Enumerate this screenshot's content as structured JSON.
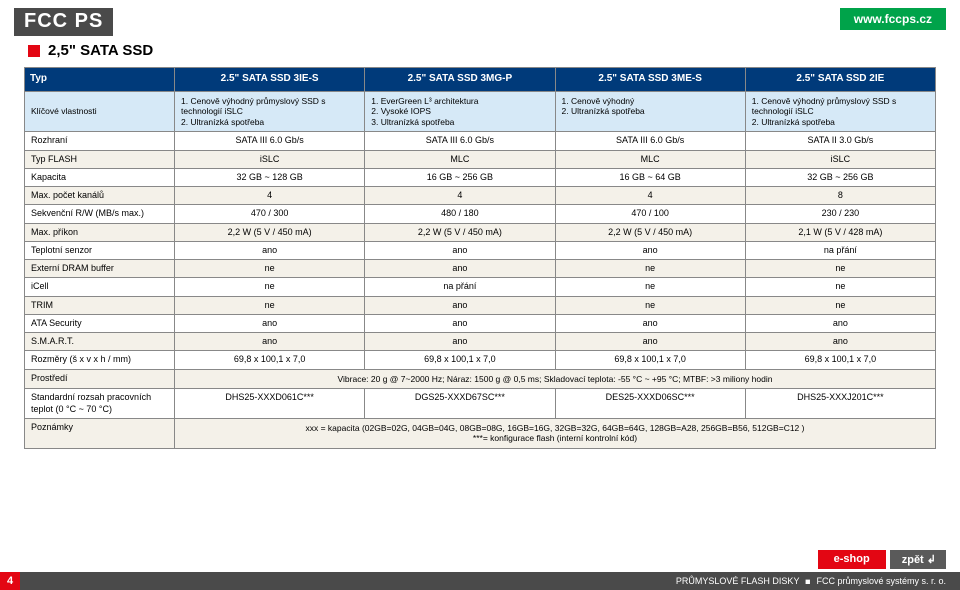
{
  "header": {
    "logo": "FCC PS",
    "url": "www.fccps.cz"
  },
  "pageTitle": "2,5\" SATA SSD",
  "table": {
    "headLabel": "Typ",
    "cols": [
      "2.5\" SATA SSD 3IE-S",
      "2.5\" SATA SSD 3MG-P",
      "2.5\" SATA SSD 3ME-S",
      "2.5\" SATA SSD 2IE"
    ],
    "featLabel": "Klíčové vlastnosti",
    "feat": [
      "1. Cenově výhodný průmyslový SSD s technologií iSLC\n2. Ultranízká spotřeba",
      "1. EverGreen L³ architektura\n2. Vysoké IOPS\n3. Ultranízká spotřeba",
      "1. Cenově výhodný\n2. Ultranízká spotřeba",
      "1. Cenově výhodný průmyslový SSD s technologií iSLC\n2. Ultranízká spotřeba"
    ],
    "rows": [
      {
        "label": "Rozhraní",
        "c": [
          "SATA III 6.0 Gb/s",
          "SATA III 6.0 Gb/s",
          "SATA III 6.0 Gb/s",
          "SATA II 3.0 Gb/s"
        ]
      },
      {
        "label": "Typ FLASH",
        "c": [
          "iSLC",
          "MLC",
          "MLC",
          "iSLC"
        ]
      },
      {
        "label": "Kapacita",
        "c": [
          "32 GB ~ 128 GB",
          "16 GB ~ 256 GB",
          "16 GB ~ 64 GB",
          "32 GB ~ 256 GB"
        ]
      },
      {
        "label": "Max. počet kanálů",
        "c": [
          "4",
          "4",
          "4",
          "8"
        ]
      },
      {
        "label": "Sekvenční R/W (MB/s max.)",
        "c": [
          "470 / 300",
          "480 / 180",
          "470 / 100",
          "230 / 230"
        ]
      },
      {
        "label": "Max. příkon",
        "c": [
          "2,2 W (5 V / 450 mA)",
          "2,2 W (5 V / 450 mA)",
          "2,2 W (5 V / 450 mA)",
          "2,1 W (5 V / 428 mA)"
        ]
      },
      {
        "label": "Teplotní senzor",
        "c": [
          "ano",
          "ano",
          "ano",
          "na přání"
        ]
      },
      {
        "label": "Externí DRAM buffer",
        "c": [
          "ne",
          "ano",
          "ne",
          "ne"
        ]
      },
      {
        "label": "iCell",
        "c": [
          "ne",
          "na přání",
          "ne",
          "ne"
        ]
      },
      {
        "label": "TRIM",
        "c": [
          "ne",
          "ano",
          "ne",
          "ne"
        ]
      },
      {
        "label": "ATA Security",
        "c": [
          "ano",
          "ano",
          "ano",
          "ano"
        ]
      },
      {
        "label": "S.M.A.R.T.",
        "c": [
          "ano",
          "ano",
          "ano",
          "ano"
        ]
      },
      {
        "label": "Rozměry (š x v x h / mm)",
        "c": [
          "69,8 x 100,1 x 7,0",
          "69,8 x 100,1 x 7,0",
          "69,8 x 100,1 x 7,0",
          "69,8 x 100,1 x 7,0"
        ]
      }
    ],
    "spanRows": [
      {
        "label": "Prostředí",
        "text": "Vibrace: 20 g @ 7~2000 Hz; Náraz: 1500 g @ 0,5 ms; Skladovací teplota: -55 °C ~ +95 °C; MTBF: >3 miliony hodin"
      }
    ],
    "tempRow": {
      "label": "Standardní rozsah pracovních teplot (0 °C ~ 70 °C)",
      "c": [
        "DHS25-XXXD061C***",
        "DGS25-XXXD67SC***",
        "DES25-XXXD06SC***",
        "DHS25-XXXJ201C***"
      ]
    },
    "notesRow": {
      "label": "Poznámky",
      "text": "xxx = kapacita (02GB=02G, 04GB=04G, 08GB=08G, 16GB=16G, 32GB=32G, 64GB=64G, 128GB=A28, 256GB=B56, 512GB=C12 )\n***= konfigurace flash (interní kontrolní kód)"
    }
  },
  "footer": {
    "eshop": "e-shop",
    "back": "zpět ↲",
    "pageNum": "4",
    "left": "PRŮMYSLOVÉ FLASH DISKY",
    "right": "FCC průmyslové systémy s. r. o."
  }
}
